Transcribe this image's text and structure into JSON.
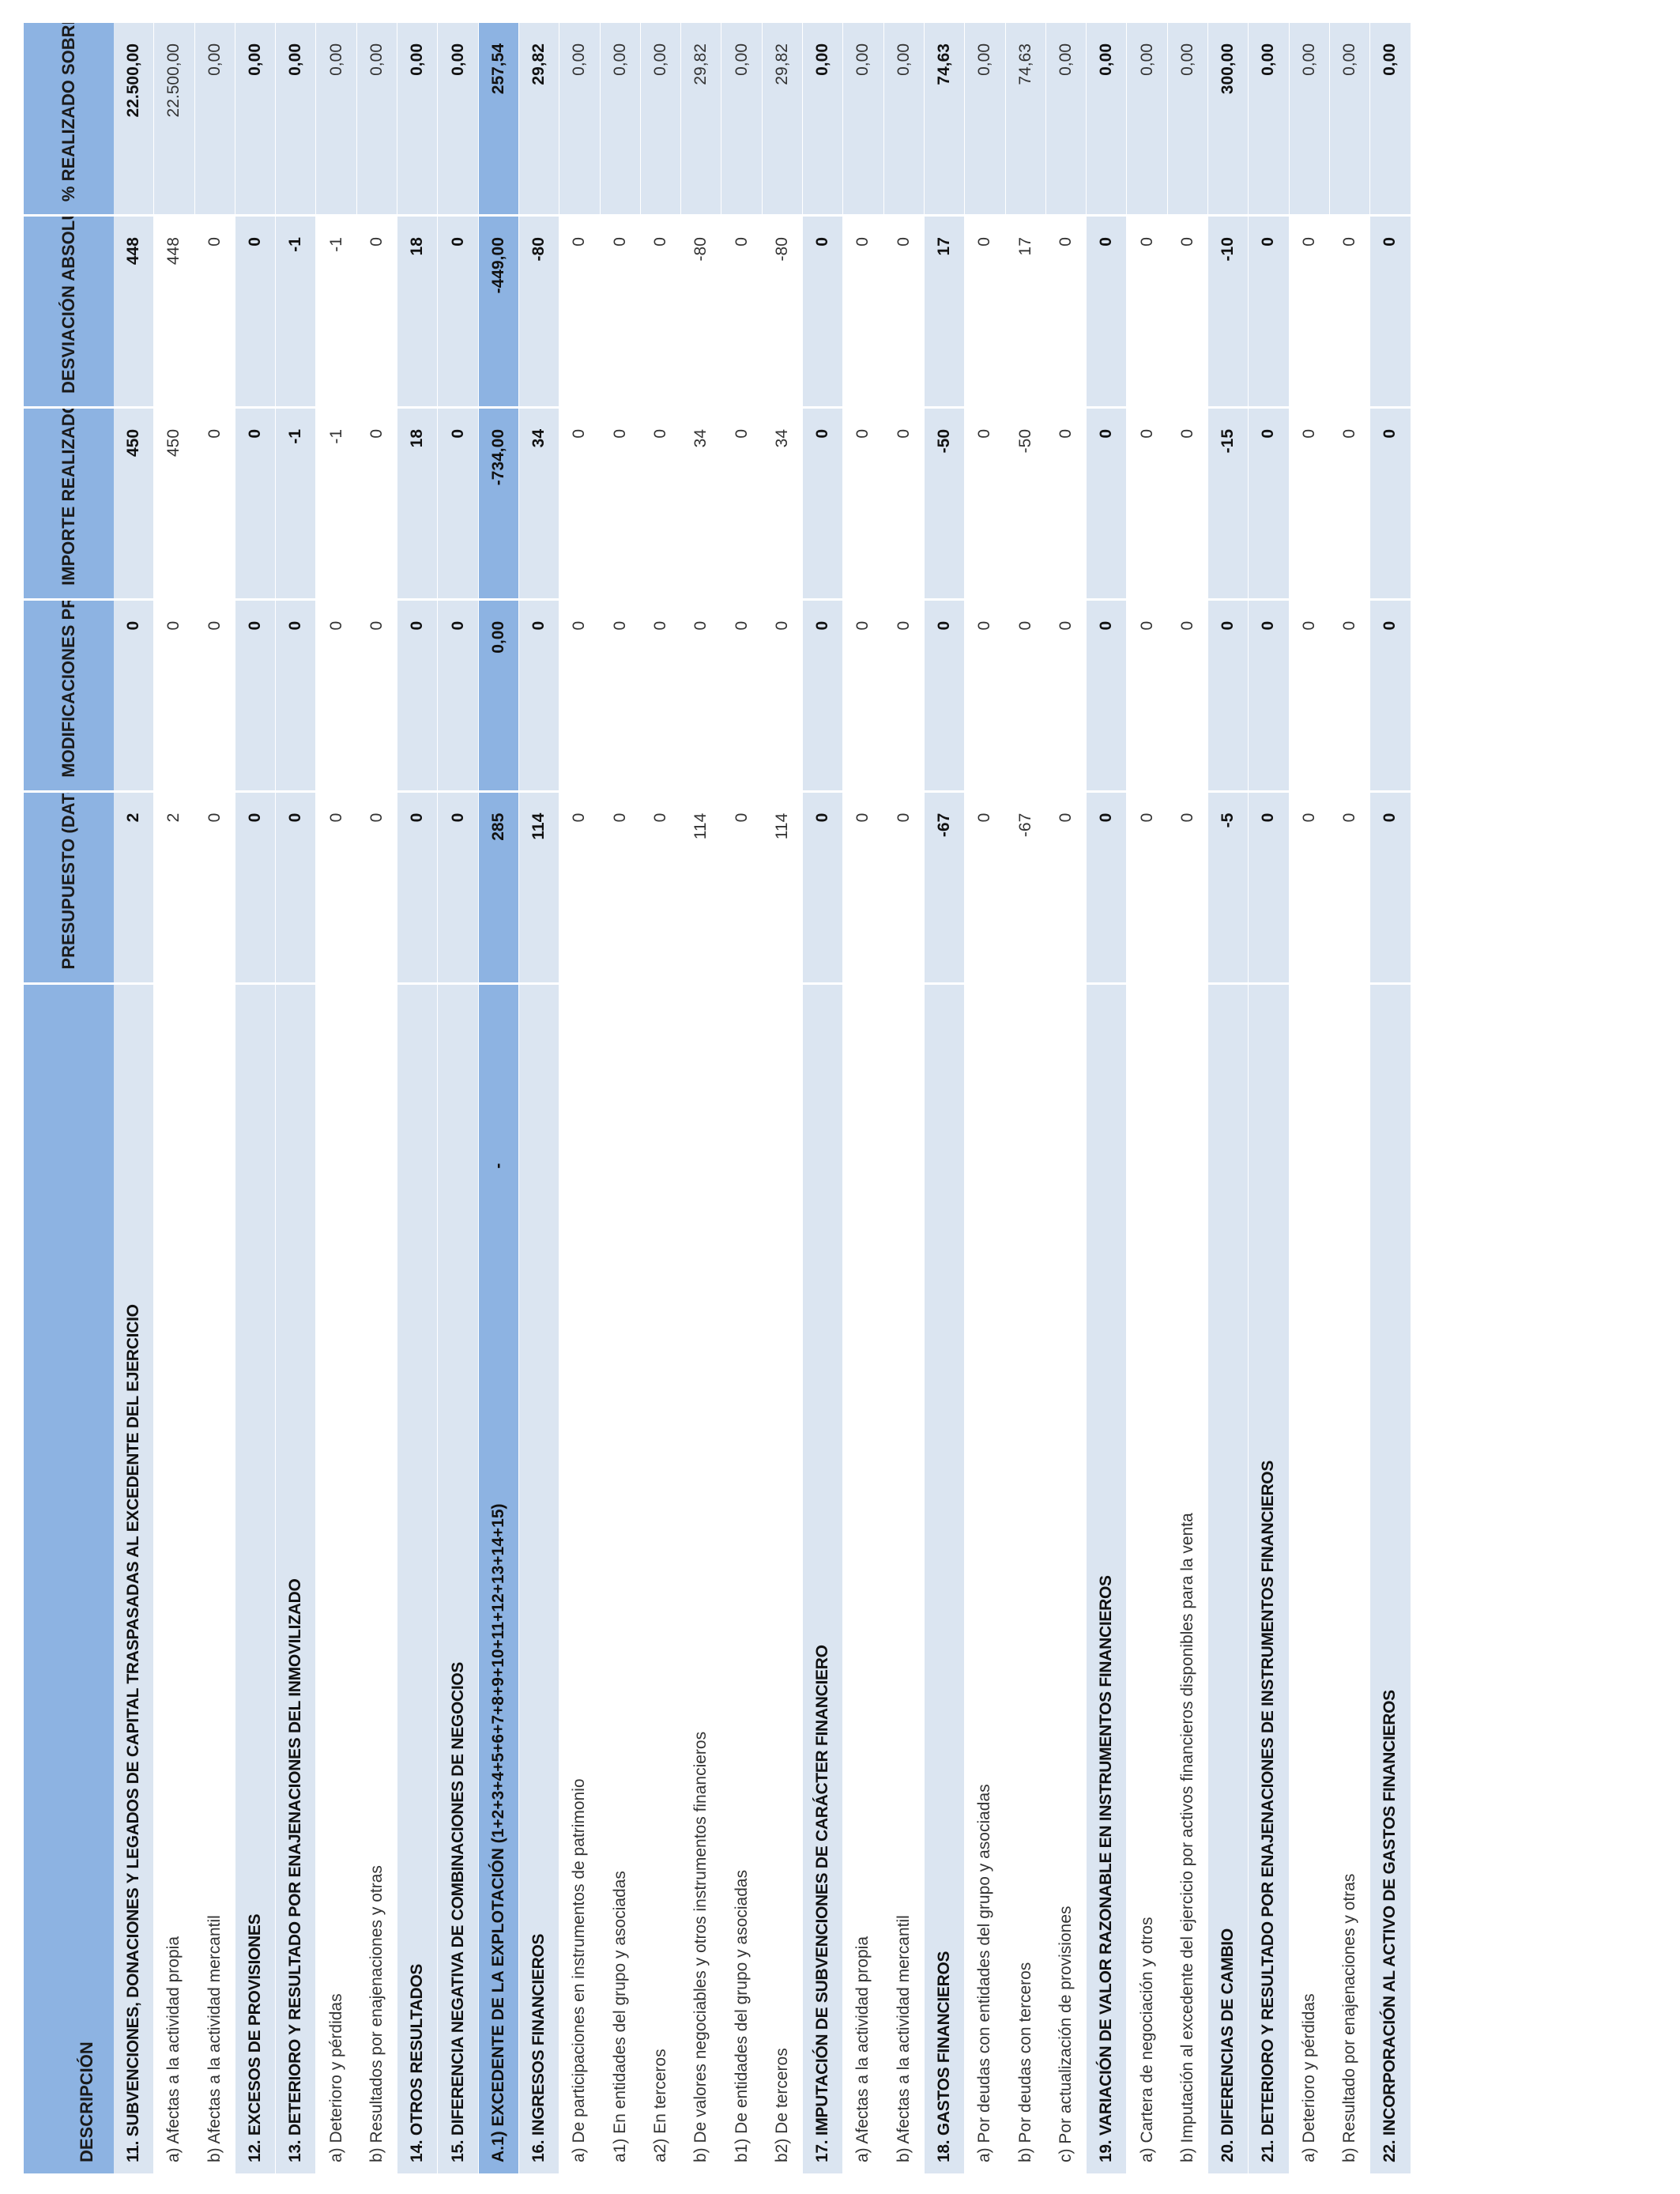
{
  "headers": {
    "descripcion": "DESCRIPCIÓN",
    "presupuesto": "PRESUPUESTO (DATOS P.G.E.)",
    "modificaciones": "MODIFICACIONES PRESUPUESTARIAS",
    "importe": "IMPORTE REALIZADO",
    "desviacion": "DESVIACIÓN ABSOLUTA",
    "porcentaje": "% REALIZADO SOBRE PREVISTO"
  },
  "rows": [
    {
      "desc": "11. SUBVENCIONES, DONACIONES Y LEGADOS DE CAPITAL TRASPASADAS AL EXCEDENTE DEL EJERCICIO",
      "presupuesto": "2",
      "modificaciones": "0",
      "importe": "450",
      "desviacion": "448",
      "porcentaje": "22.500,00",
      "style": "bold"
    },
    {
      "desc": "a) Afectas a la actividad propia",
      "presupuesto": "2",
      "modificaciones": "0",
      "importe": "450",
      "desviacion": "448",
      "porcentaje": "22.500,00",
      "style": "plain"
    },
    {
      "desc": "b) Afectas a la actividad mercantil",
      "presupuesto": "0",
      "modificaciones": "0",
      "importe": "0",
      "desviacion": "0",
      "porcentaje": "0,00",
      "style": "plain"
    },
    {
      "desc": "12. EXCESOS DE PROVISIONES",
      "presupuesto": "0",
      "modificaciones": "0",
      "importe": "0",
      "desviacion": "0",
      "porcentaje": "0,00",
      "style": "bold"
    },
    {
      "desc": "13. DETERIORO Y RESULTADO POR ENAJENACIONES DEL INMOVILIZADO",
      "presupuesto": "0",
      "modificaciones": "0",
      "importe": "-1",
      "desviacion": "-1",
      "porcentaje": "0,00",
      "style": "bold"
    },
    {
      "desc": "a) Deterioro y pérdidas",
      "presupuesto": "0",
      "modificaciones": "0",
      "importe": "-1",
      "desviacion": "-1",
      "porcentaje": "0,00",
      "style": "plain"
    },
    {
      "desc": "b) Resultados por enajenaciones y otras",
      "presupuesto": "0",
      "modificaciones": "0",
      "importe": "0",
      "desviacion": "0",
      "porcentaje": "0,00",
      "style": "plain"
    },
    {
      "desc": "14. OTROS RESULTADOS",
      "presupuesto": "0",
      "modificaciones": "0",
      "importe": "18",
      "desviacion": "18",
      "porcentaje": "0,00",
      "style": "bold"
    },
    {
      "desc": "15. DIFERENCIA NEGATIVA DE COMBINACIONES DE NEGOCIOS",
      "presupuesto": "0",
      "modificaciones": "0",
      "importe": "0",
      "desviacion": "0",
      "porcentaje": "0,00",
      "style": "bold"
    },
    {
      "desc": "A.1) EXCEDENTE DE LA EXPLOTACIÓN (1+2+3+4+5+6+7+8+9+10+11+12+13+14+15)",
      "dash": "-",
      "presupuesto": "285",
      "modificaciones": "0,00",
      "importe": "-734,00",
      "desviacion": "-449,00",
      "porcentaje": "257,54",
      "style": "hl"
    },
    {
      "desc": "16. INGRESOS FINANCIEROS",
      "presupuesto": "114",
      "modificaciones": "0",
      "importe": "34",
      "desviacion": "-80",
      "porcentaje": "29,82",
      "style": "bold"
    },
    {
      "desc": "a) De participaciones en instrumentos de patrimonio",
      "presupuesto": "0",
      "modificaciones": "0",
      "importe": "0",
      "desviacion": "0",
      "porcentaje": "0,00",
      "style": "plain"
    },
    {
      "desc": "a1) En entidades del grupo y asociadas",
      "presupuesto": "0",
      "modificaciones": "0",
      "importe": "0",
      "desviacion": "0",
      "porcentaje": "0,00",
      "style": "plain"
    },
    {
      "desc": "a2) En terceros",
      "presupuesto": "0",
      "modificaciones": "0",
      "importe": "0",
      "desviacion": "0",
      "porcentaje": "0,00",
      "style": "plain"
    },
    {
      "desc": "b) De valores negociables y otros instrumentos financieros",
      "presupuesto": "114",
      "modificaciones": "0",
      "importe": "34",
      "desviacion": "-80",
      "porcentaje": "29,82",
      "style": "plain"
    },
    {
      "desc": "b1) De entidades del grupo y asociadas",
      "presupuesto": "0",
      "modificaciones": "0",
      "importe": "0",
      "desviacion": "0",
      "porcentaje": "0,00",
      "style": "plain"
    },
    {
      "desc": "b2) De terceros",
      "presupuesto": "114",
      "modificaciones": "0",
      "importe": "34",
      "desviacion": "-80",
      "porcentaje": "29,82",
      "style": "plain"
    },
    {
      "desc": "17. IMPUTACIÓN DE SUBVENCIONES DE CARÁCTER FINANCIERO",
      "presupuesto": "0",
      "modificaciones": "0",
      "importe": "0",
      "desviacion": "0",
      "porcentaje": "0,00",
      "style": "bold"
    },
    {
      "desc": "a) Afectas a la actividad propia",
      "presupuesto": "0",
      "modificaciones": "0",
      "importe": "0",
      "desviacion": "0",
      "porcentaje": "0,00",
      "style": "plain"
    },
    {
      "desc": "b) Afectas a la actividad mercantil",
      "presupuesto": "0",
      "modificaciones": "0",
      "importe": "0",
      "desviacion": "0",
      "porcentaje": "0,00",
      "style": "plain"
    },
    {
      "desc": "18. GASTOS FINANCIEROS",
      "presupuesto": "-67",
      "modificaciones": "0",
      "importe": "-50",
      "desviacion": "17",
      "porcentaje": "74,63",
      "style": "bold"
    },
    {
      "desc": "a) Por deudas con entidades del grupo y asociadas",
      "presupuesto": "0",
      "modificaciones": "0",
      "importe": "0",
      "desviacion": "0",
      "porcentaje": "0,00",
      "style": "plain"
    },
    {
      "desc": "b) Por deudas con terceros",
      "presupuesto": "-67",
      "modificaciones": "0",
      "importe": "-50",
      "desviacion": "17",
      "porcentaje": "74,63",
      "style": "plain"
    },
    {
      "desc": "c) Por actualización de provisiones",
      "presupuesto": "0",
      "modificaciones": "0",
      "importe": "0",
      "desviacion": "0",
      "porcentaje": "0,00",
      "style": "plain"
    },
    {
      "desc": "19. VARIACIÓN DE VALOR RAZONABLE EN INSTRUMENTOS FINANCIEROS",
      "presupuesto": "0",
      "modificaciones": "0",
      "importe": "0",
      "desviacion": "0",
      "porcentaje": "0,00",
      "style": "bold"
    },
    {
      "desc": "a) Cartera de negociación y otros",
      "presupuesto": "0",
      "modificaciones": "0",
      "importe": "0",
      "desviacion": "0",
      "porcentaje": "0,00",
      "style": "plain"
    },
    {
      "desc": "b) Imputación al excedente del ejercicio por activos financieros disponibles para la venta",
      "presupuesto": "0",
      "modificaciones": "0",
      "importe": "0",
      "desviacion": "0",
      "porcentaje": "0,00",
      "style": "plain"
    },
    {
      "desc": "20. DIFERENCIAS DE CAMBIO",
      "presupuesto": "-5",
      "modificaciones": "0",
      "importe": "-15",
      "desviacion": "-10",
      "porcentaje": "300,00",
      "style": "bold"
    },
    {
      "desc": "21. DETERIORO Y RESULTADO POR ENAJENACIONES DE INSTRUMENTOS FINANCIEROS",
      "presupuesto": "0",
      "modificaciones": "0",
      "importe": "0",
      "desviacion": "0",
      "porcentaje": "0,00",
      "style": "bold"
    },
    {
      "desc": "a) Deterioro y pérdidas",
      "presupuesto": "0",
      "modificaciones": "0",
      "importe": "0",
      "desviacion": "0",
      "porcentaje": "0,00",
      "style": "plain"
    },
    {
      "desc": "b) Resultado por enajenaciones y otras",
      "presupuesto": "0",
      "modificaciones": "0",
      "importe": "0",
      "desviacion": "0",
      "porcentaje": "0,00",
      "style": "plain"
    },
    {
      "desc": "22. INCORPORACIÓN AL ACTIVO DE GASTOS FINANCIEROS",
      "presupuesto": "0",
      "modificaciones": "0",
      "importe": "0",
      "desviacion": "0",
      "porcentaje": "0,00",
      "style": "bold"
    }
  ]
}
